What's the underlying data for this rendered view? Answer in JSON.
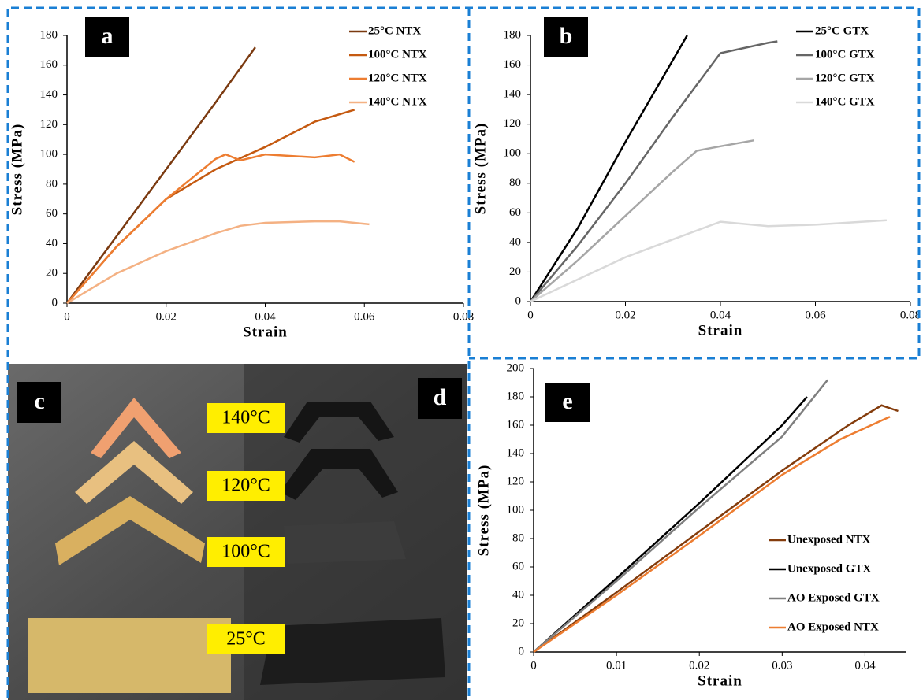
{
  "chart_data": [
    {
      "type": "line",
      "panel_label": "a",
      "xlabel": "Strain",
      "ylabel": "Stress (MPa)",
      "xlim": [
        0,
        0.08
      ],
      "xticks": [
        0,
        0.02,
        0.04,
        0.06,
        0.08
      ],
      "ylim": [
        0,
        180
      ],
      "yticks": [
        0,
        20,
        40,
        60,
        80,
        100,
        120,
        140,
        160,
        180
      ],
      "legend": "upper right",
      "series": [
        {
          "name": "25°C NTX",
          "color": "#7b3a10",
          "x": [
            0,
            0.01,
            0.02,
            0.03,
            0.038
          ],
          "values": [
            0,
            45,
            90,
            135,
            172
          ]
        },
        {
          "name": "100°C NTX",
          "color": "#c55a11",
          "x": [
            0,
            0.01,
            0.02,
            0.03,
            0.04,
            0.05,
            0.058
          ],
          "values": [
            0,
            38,
            70,
            90,
            105,
            122,
            130
          ]
        },
        {
          "name": "120°C NTX",
          "color": "#ed7d31",
          "x": [
            0,
            0.01,
            0.02,
            0.03,
            0.032,
            0.035,
            0.04,
            0.05,
            0.055,
            0.058
          ],
          "values": [
            0,
            38,
            70,
            97,
            100,
            96,
            100,
            98,
            100,
            95
          ]
        },
        {
          "name": "140°C NTX",
          "color": "#f4b183",
          "x": [
            0,
            0.01,
            0.02,
            0.03,
            0.035,
            0.04,
            0.05,
            0.055,
            0.061
          ],
          "values": [
            0,
            20,
            35,
            47,
            52,
            54,
            55,
            55,
            53
          ]
        }
      ]
    },
    {
      "type": "line",
      "panel_label": "b",
      "xlabel": "Strain",
      "ylabel": "Stress (MPa)",
      "xlim": [
        0,
        0.08
      ],
      "xticks": [
        0,
        0.02,
        0.04,
        0.06,
        0.08
      ],
      "ylim": [
        0,
        180
      ],
      "yticks": [
        0,
        20,
        40,
        60,
        80,
        100,
        120,
        140,
        160,
        180
      ],
      "legend": "upper right",
      "series": [
        {
          "name": "25°C GTX",
          "color": "#000000",
          "x": [
            0,
            0.01,
            0.02,
            0.033
          ],
          "values": [
            0,
            50,
            108,
            180
          ]
        },
        {
          "name": "100°C GTX",
          "color": "#666666",
          "x": [
            0,
            0.01,
            0.02,
            0.03,
            0.04,
            0.05,
            0.052
          ],
          "values": [
            0,
            38,
            80,
            125,
            168,
            175,
            176
          ]
        },
        {
          "name": "120°C GTX",
          "color": "#a6a6a6",
          "x": [
            0,
            0.01,
            0.02,
            0.03,
            0.035,
            0.04,
            0.047
          ],
          "values": [
            0,
            28,
            58,
            88,
            102,
            105,
            109
          ]
        },
        {
          "name": "140°C GTX",
          "color": "#d9d9d9",
          "x": [
            0,
            0.01,
            0.02,
            0.03,
            0.04,
            0.05,
            0.06,
            0.075
          ],
          "values": [
            0,
            15,
            30,
            42,
            54,
            51,
            52,
            55
          ]
        }
      ]
    },
    {
      "type": "line",
      "panel_label": "e",
      "xlabel": "Strain",
      "ylabel": "Stress (MPa)",
      "xlim": [
        0,
        0.045
      ],
      "xticks": [
        0,
        0.01,
        0.02,
        0.03,
        0.04
      ],
      "ylim": [
        0,
        200
      ],
      "yticks": [
        0,
        20,
        40,
        60,
        80,
        100,
        120,
        140,
        160,
        180,
        200
      ],
      "legend": "center right",
      "series": [
        {
          "name": "Unexposed NTX",
          "color": "#843c0c",
          "x": [
            0,
            0.01,
            0.02,
            0.03,
            0.038,
            0.042,
            0.044
          ],
          "values": [
            0,
            42,
            85,
            128,
            160,
            174,
            170
          ]
        },
        {
          "name": "Unexposed GTX",
          "color": "#000000",
          "x": [
            0,
            0.01,
            0.02,
            0.03,
            0.033
          ],
          "values": [
            0,
            52,
            105,
            160,
            180
          ]
        },
        {
          "name": "AO Exposed GTX",
          "color": "#7f7f7f",
          "x": [
            0,
            0.01,
            0.02,
            0.03,
            0.0355
          ],
          "values": [
            0,
            50,
            102,
            152,
            192
          ]
        },
        {
          "name": "AO Exposed NTX",
          "color": "#ed7d31",
          "x": [
            0,
            0.01,
            0.02,
            0.03,
            0.037,
            0.043
          ],
          "values": [
            0,
            40,
            82,
            125,
            150,
            166
          ]
        }
      ]
    }
  ],
  "photo": {
    "panel_labels": [
      "c",
      "d"
    ],
    "temperature_labels": [
      "140°C",
      "120°C",
      "100°C",
      "25°C"
    ]
  }
}
